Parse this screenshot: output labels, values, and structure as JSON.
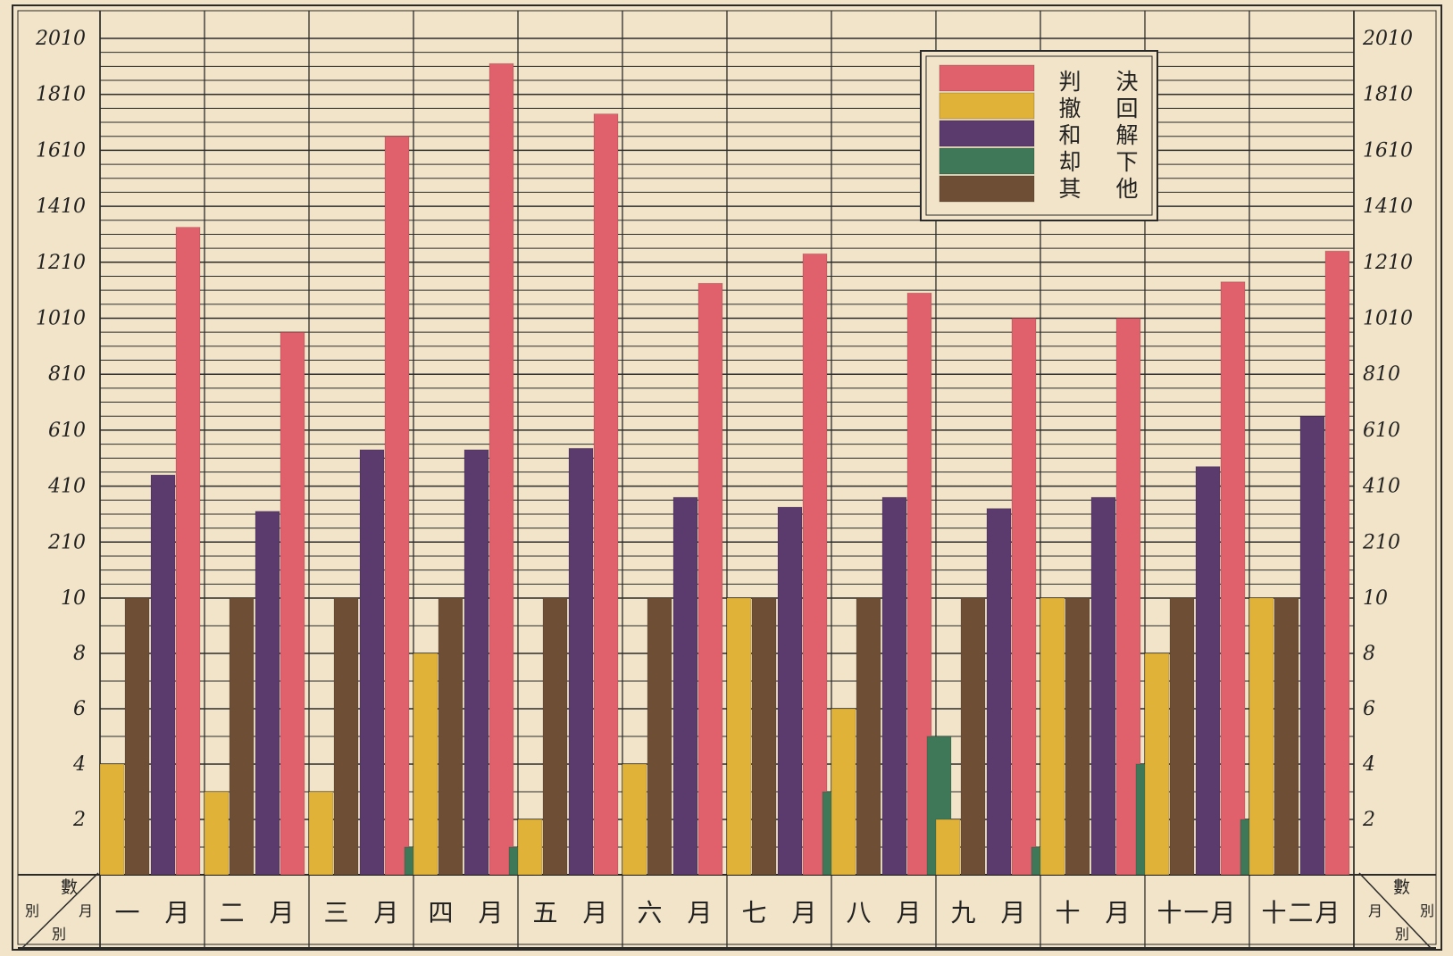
{
  "chart_data": {
    "type": "bar",
    "y_tick_labels": [
      "2010",
      "1810",
      "1610",
      "1410",
      "1210",
      "1010",
      "810",
      "610",
      "410",
      "210",
      "10",
      "8",
      "6",
      "4",
      "2"
    ],
    "categories": [
      "一　月",
      "二　月",
      "三　月",
      "四　月",
      "五　月",
      "六　月",
      "七　月",
      "八　月",
      "九　月",
      "十　月",
      "十一月",
      "十二月"
    ],
    "series": [
      {
        "name": "其他",
        "color": "#3f7858",
        "values": [
          0,
          0,
          0,
          1,
          1,
          0,
          0,
          3,
          5,
          1,
          4,
          2
        ]
      },
      {
        "name": "却下",
        "color": "#e0b238",
        "values": [
          4,
          3,
          3,
          8,
          2,
          4,
          10,
          6,
          2,
          10,
          8,
          10.4
        ]
      },
      {
        "name": "和解",
        "color": "#6e4f36",
        "values": [
          10.3,
          10.2,
          10.5,
          10.5,
          10.5,
          10.3,
          10.3,
          10.3,
          10.5,
          10.3,
          10.3,
          10.7
        ]
      },
      {
        "name": "撤回",
        "color": "#5b3b6e",
        "values": [
          450,
          320,
          540,
          540,
          545,
          370,
          335,
          370,
          330,
          370,
          480,
          660
        ]
      },
      {
        "name": "判決",
        "color": "#e0616c",
        "values": [
          1335,
          960,
          1660,
          1920,
          1740,
          1135,
          1240,
          1100,
          1010,
          1010,
          1140,
          1250
        ]
      }
    ],
    "legend": {
      "placement": "top-right",
      "col_right": [
        "決",
        "回",
        "解",
        "下",
        "他"
      ],
      "col_left": [
        "判",
        "撤",
        "和",
        "却",
        "其"
      ]
    },
    "header_left": {
      "top": "數",
      "right": "月",
      "left": "別",
      "bottom": "別"
    },
    "header_right": {
      "top": "數",
      "left": "月",
      "right": "別",
      "bottom": "別"
    },
    "scale_note": "below 10: linear 0–10 units; above 10: linear 10–2010 units",
    "colors": {
      "paper": "#f2e4c8",
      "grid": "#2c2c2c",
      "ink": "#222222"
    }
  }
}
